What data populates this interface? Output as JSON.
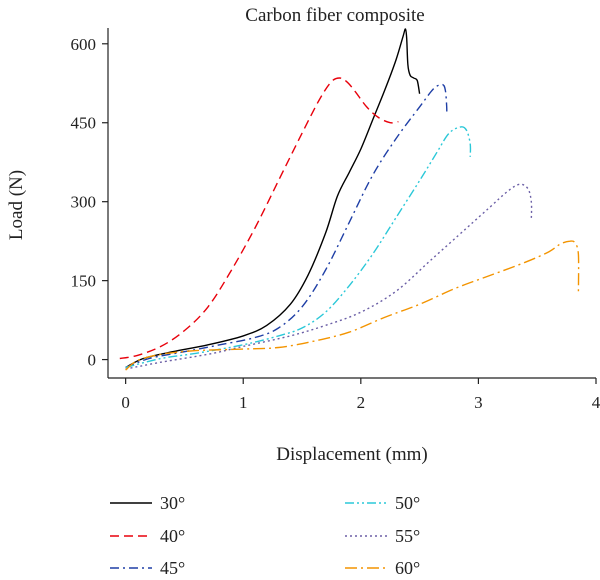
{
  "chart_data": {
    "type": "line",
    "title": "Carbon fiber composite",
    "xlabel": "Displacement (mm)",
    "ylabel": "Load (N)",
    "xlim": [
      -0.15,
      4
    ],
    "ylim": [
      -35,
      630
    ],
    "xticks": [
      0,
      1,
      2,
      3,
      4
    ],
    "yticks": [
      0,
      150,
      300,
      450,
      600
    ],
    "xtick_labels": [
      "0",
      "1",
      "2",
      "3",
      "4"
    ],
    "ytick_labels": [
      "0",
      "150",
      "300",
      "450",
      "600"
    ],
    "grid": false,
    "legend_position": "bottom",
    "series": [
      {
        "name": "30°",
        "color": "#000000",
        "dash": "solid",
        "points": [
          [
            0,
            -15
          ],
          [
            0.15,
            2
          ],
          [
            0.4,
            15
          ],
          [
            0.7,
            28
          ],
          [
            1.0,
            45
          ],
          [
            1.2,
            65
          ],
          [
            1.4,
            105
          ],
          [
            1.55,
            160
          ],
          [
            1.7,
            240
          ],
          [
            1.8,
            310
          ],
          [
            1.9,
            355
          ],
          [
            2.0,
            400
          ],
          [
            2.1,
            455
          ],
          [
            2.2,
            510
          ],
          [
            2.3,
            570
          ],
          [
            2.36,
            615
          ],
          [
            2.38,
            628
          ],
          [
            2.39,
            610
          ],
          [
            2.4,
            560
          ],
          [
            2.42,
            540
          ],
          [
            2.45,
            535
          ],
          [
            2.48,
            530
          ],
          [
            2.5,
            505
          ]
        ]
      },
      {
        "name": "40°",
        "color": "#e8000b",
        "dash": "dashed",
        "points": [
          [
            -0.05,
            2
          ],
          [
            0.1,
            8
          ],
          [
            0.3,
            25
          ],
          [
            0.5,
            55
          ],
          [
            0.7,
            100
          ],
          [
            0.9,
            170
          ],
          [
            1.1,
            250
          ],
          [
            1.3,
            340
          ],
          [
            1.5,
            430
          ],
          [
            1.65,
            495
          ],
          [
            1.75,
            528
          ],
          [
            1.82,
            535
          ],
          [
            1.88,
            528
          ],
          [
            1.95,
            510
          ],
          [
            2.05,
            480
          ],
          [
            2.15,
            460
          ],
          [
            2.25,
            450
          ],
          [
            2.32,
            452
          ]
        ]
      },
      {
        "name": "45°",
        "color": "#1f3fa6",
        "dash": "dashdot",
        "points": [
          [
            0,
            -15
          ],
          [
            0.2,
            2
          ],
          [
            0.5,
            15
          ],
          [
            0.8,
            28
          ],
          [
            1.1,
            42
          ],
          [
            1.3,
            60
          ],
          [
            1.5,
            100
          ],
          [
            1.7,
            170
          ],
          [
            1.9,
            260
          ],
          [
            2.1,
            350
          ],
          [
            2.3,
            420
          ],
          [
            2.5,
            480
          ],
          [
            2.6,
            510
          ],
          [
            2.65,
            520
          ],
          [
            2.7,
            522
          ],
          [
            2.72,
            510
          ],
          [
            2.73,
            480
          ],
          [
            2.73,
            465
          ]
        ]
      },
      {
        "name": "50°",
        "color": "#2bc8d8",
        "dash": "dashdotdot",
        "points": [
          [
            0,
            -15
          ],
          [
            0.3,
            2
          ],
          [
            0.6,
            12
          ],
          [
            1.0,
            28
          ],
          [
            1.3,
            45
          ],
          [
            1.5,
            60
          ],
          [
            1.7,
            90
          ],
          [
            1.9,
            140
          ],
          [
            2.1,
            200
          ],
          [
            2.3,
            270
          ],
          [
            2.5,
            340
          ],
          [
            2.65,
            395
          ],
          [
            2.75,
            430
          ],
          [
            2.85,
            442
          ],
          [
            2.9,
            435
          ],
          [
            2.93,
            410
          ],
          [
            2.93,
            385
          ]
        ]
      },
      {
        "name": "55°",
        "color": "#6b5fa6",
        "dash": "dotted",
        "points": [
          [
            0,
            -18
          ],
          [
            0.3,
            -5
          ],
          [
            0.7,
            10
          ],
          [
            1.0,
            25
          ],
          [
            1.4,
            45
          ],
          [
            1.7,
            65
          ],
          [
            2.0,
            90
          ],
          [
            2.3,
            130
          ],
          [
            2.6,
            190
          ],
          [
            2.9,
            250
          ],
          [
            3.1,
            290
          ],
          [
            3.25,
            320
          ],
          [
            3.35,
            333
          ],
          [
            3.42,
            325
          ],
          [
            3.45,
            300
          ],
          [
            3.45,
            265
          ]
        ]
      },
      {
        "name": "60°",
        "color": "#f39400",
        "dash": "longdashdot",
        "points": [
          [
            0,
            -20
          ],
          [
            0.1,
            -2
          ],
          [
            0.3,
            10
          ],
          [
            0.6,
            17
          ],
          [
            1.0,
            20
          ],
          [
            1.3,
            23
          ],
          [
            1.6,
            35
          ],
          [
            1.9,
            52
          ],
          [
            2.2,
            80
          ],
          [
            2.5,
            105
          ],
          [
            2.8,
            135
          ],
          [
            3.1,
            160
          ],
          [
            3.4,
            185
          ],
          [
            3.6,
            205
          ],
          [
            3.7,
            220
          ],
          [
            3.78,
            225
          ],
          [
            3.82,
            222
          ],
          [
            3.85,
            200
          ],
          [
            3.85,
            125
          ]
        ]
      }
    ]
  }
}
